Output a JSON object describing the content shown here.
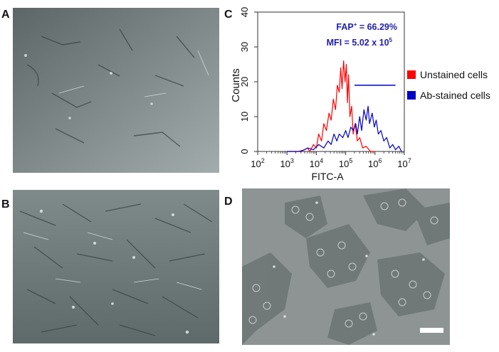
{
  "panels": {
    "A": {
      "label": "A"
    },
    "B": {
      "label": "B"
    },
    "C": {
      "label": "C"
    },
    "D": {
      "label": "D"
    }
  },
  "annotations": {
    "fap_prefix": "FAP",
    "fap_sup": "+",
    "fap_value": " = 66.29%",
    "mfi_prefix": "MFI = 5.02 x 10",
    "mfi_sup": "5"
  },
  "colors": {
    "unstained": "#ff0000",
    "stained": "#0000cc",
    "annotation": "#1f1fb0"
  },
  "chart_data": {
    "type": "line",
    "xlabel": "FITC-A",
    "ylabel": "Counts",
    "x_scale": "log",
    "xlim": [
      100,
      10000000
    ],
    "ylim": [
      0,
      40
    ],
    "yticks": [
      "0",
      "10",
      "20",
      "30",
      "40"
    ],
    "xticks": [
      {
        "base": "10",
        "exp": "2"
      },
      {
        "base": "10",
        "exp": "3"
      },
      {
        "base": "10",
        "exp": "4"
      },
      {
        "base": "10",
        "exp": "5"
      },
      {
        "base": "10",
        "exp": "6"
      },
      {
        "base": "10",
        "exp": "7"
      }
    ],
    "gate": {
      "x_start": 200000,
      "x_end": 5000000,
      "y": 19
    },
    "legend_placement": "right",
    "series": [
      {
        "name": "Unstained cells",
        "color": "#ff0000",
        "points": [
          [
            1000,
            0
          ],
          [
            2500,
            0
          ],
          [
            4000,
            0.5
          ],
          [
            5000,
            1
          ],
          [
            6000,
            0
          ],
          [
            8000,
            2
          ],
          [
            10000,
            1
          ],
          [
            12000,
            5
          ],
          [
            15000,
            3
          ],
          [
            18000,
            8
          ],
          [
            22000,
            6
          ],
          [
            27000,
            11
          ],
          [
            32000,
            9
          ],
          [
            38000,
            15
          ],
          [
            45000,
            12
          ],
          [
            52000,
            19
          ],
          [
            60000,
            17
          ],
          [
            68000,
            24
          ],
          [
            75000,
            18
          ],
          [
            85000,
            26
          ],
          [
            95000,
            20
          ],
          [
            105000,
            25
          ],
          [
            115000,
            14
          ],
          [
            125000,
            22
          ],
          [
            140000,
            10
          ],
          [
            160000,
            13
          ],
          [
            180000,
            5
          ],
          [
            210000,
            8
          ],
          [
            250000,
            3
          ],
          [
            300000,
            4
          ],
          [
            380000,
            1
          ],
          [
            500000,
            1.5
          ],
          [
            700000,
            0
          ],
          [
            1000000,
            0
          ]
        ]
      },
      {
        "name": "Ab-stained cells",
        "color": "#0000cc",
        "points": [
          [
            1000,
            0
          ],
          [
            3000,
            0
          ],
          [
            5000,
            1
          ],
          [
            8000,
            0.5
          ],
          [
            12000,
            2
          ],
          [
            18000,
            1
          ],
          [
            25000,
            3
          ],
          [
            32000,
            2
          ],
          [
            40000,
            5
          ],
          [
            50000,
            3
          ],
          [
            60000,
            5
          ],
          [
            80000,
            4
          ],
          [
            100000,
            6
          ],
          [
            120000,
            4
          ],
          [
            150000,
            7
          ],
          [
            180000,
            6
          ],
          [
            220000,
            8
          ],
          [
            250000,
            5
          ],
          [
            300000,
            10
          ],
          [
            350000,
            6
          ],
          [
            420000,
            12
          ],
          [
            500000,
            9
          ],
          [
            580000,
            13
          ],
          [
            650000,
            8
          ],
          [
            800000,
            11
          ],
          [
            950000,
            7
          ],
          [
            1100000,
            9
          ],
          [
            1300000,
            5
          ],
          [
            1600000,
            6
          ],
          [
            2000000,
            3
          ],
          [
            2500000,
            4
          ],
          [
            3200000,
            1
          ],
          [
            4000000,
            2
          ],
          [
            5000000,
            0.5
          ],
          [
            6500000,
            1.5
          ],
          [
            8000000,
            0
          ]
        ]
      }
    ]
  }
}
